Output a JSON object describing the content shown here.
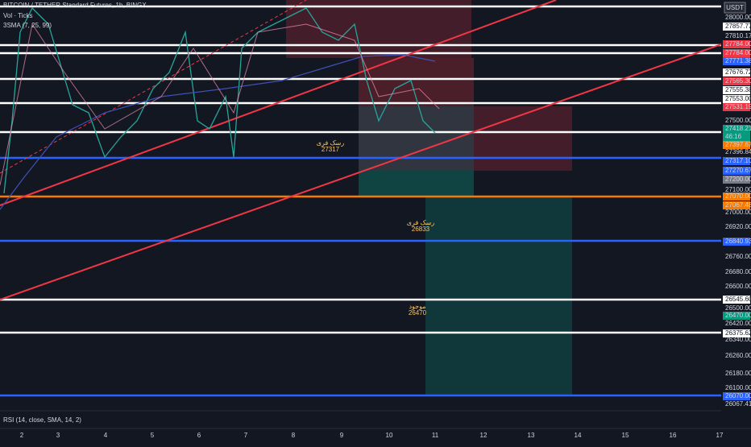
{
  "header": {
    "symbol": "BITCOIN / TETHER Standard Futures, 1h, BINGX",
    "volume": "Vol · Ticks",
    "sma": "3SMA (7, 25, 99)",
    "currency": "USDT"
  },
  "price_axis": [
    "28000.00",
    "27857.77",
    "27810.17",
    "27784.00",
    "27784.00",
    "27771.38",
    "27676.72",
    "27565.30",
    "27555.38",
    "27553.00",
    "27531.19",
    "27500.00",
    "27418.21",
    "46:16",
    "27397.67",
    "27396.84",
    "27317.10",
    "27270.67",
    "27200.00",
    "27100.00",
    "27070.00",
    "27067.48",
    "27000.00",
    "26920.00",
    "26840.93",
    "26760.00",
    "26680.00",
    "26600.00",
    "26545.60",
    "26500.00",
    "26470.00",
    "26420.00",
    "26375.62",
    "26340.00",
    "26260.00",
    "26180.00",
    "26100.00",
    "26070.00",
    "26067.41"
  ],
  "time_axis": [
    "2",
    "3",
    "4",
    "5",
    "6",
    "7",
    "8",
    "9",
    "10",
    "11",
    "12",
    "13",
    "14",
    "15",
    "16",
    "17"
  ],
  "annotations": [
    {
      "label": "رسک فری",
      "price": "27317"
    },
    {
      "label": "رسک فری",
      "price": "26833"
    },
    {
      "label": "موجود",
      "price": "26470"
    }
  ],
  "indicator": "RSI (14, close, SMA, 14, 2)"
}
